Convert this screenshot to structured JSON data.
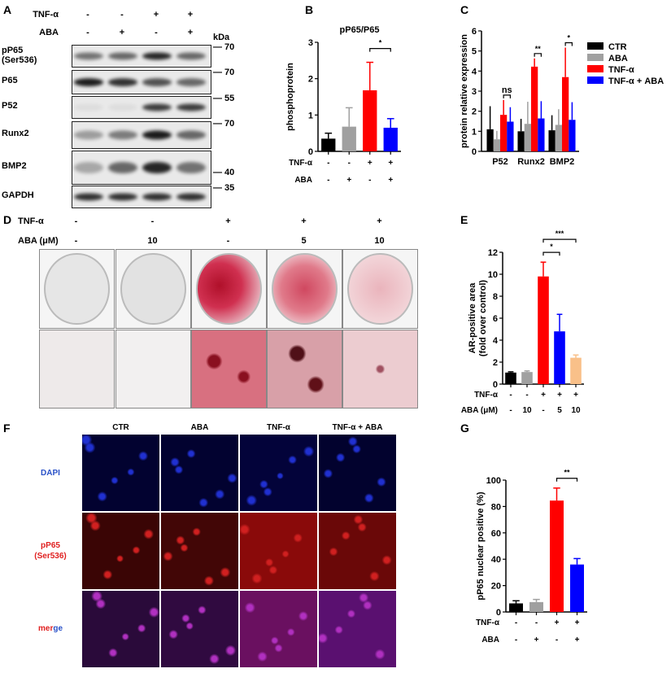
{
  "panels": {
    "A": "A",
    "B": "B",
    "C": "C",
    "D": "D",
    "E": "E",
    "F": "F",
    "G": "G"
  },
  "panel_a": {
    "conditions": [
      {
        "label": "TNF-α",
        "values": [
          "-",
          "-",
          "+",
          "+"
        ]
      },
      {
        "label": "ABA",
        "values": [
          "-",
          "+",
          "-",
          "+"
        ]
      }
    ],
    "kda_label": "kDa",
    "rows": [
      {
        "label": "pP65",
        "sublabel": "(Ser536)",
        "kda": "70"
      },
      {
        "label": "P65",
        "kda": "70"
      },
      {
        "label": "P52",
        "kda": "55"
      },
      {
        "label": "Runx2",
        "kda": "70"
      },
      {
        "label": "BMP2",
        "kda": "40"
      },
      {
        "label": "GAPDH",
        "kda": "35"
      }
    ]
  },
  "panel_d": {
    "conditions": [
      {
        "label": "TNF-α",
        "values": [
          "-",
          "-",
          "+",
          "+",
          "+"
        ]
      },
      {
        "label": "ABA (μM)",
        "values": [
          "-",
          "10",
          "-",
          "5",
          "10"
        ]
      }
    ]
  },
  "panel_f": {
    "columns": [
      "CTR",
      "ABA",
      "TNF-α",
      "TNF-α + ABA"
    ],
    "rows": [
      {
        "label": "DAPI",
        "color": "#2a52c8"
      },
      {
        "label": "pP65",
        "sublabel": "(Ser536)",
        "color": "#e02020"
      },
      {
        "label_part1": "mer",
        "label_part2": "ge",
        "color1": "#e02020",
        "color2": "#2a52c8"
      }
    ]
  },
  "colors": {
    "ctr": "#000000",
    "aba": "#a0a0a0",
    "tnf": "#ff0000",
    "tnf_aba": "#0000ff",
    "aba10": "#f9c089"
  },
  "chart_data": [
    {
      "id": "B",
      "type": "bar",
      "title": "pP65/P65",
      "xlabel": "",
      "ylabel": "phosphoprotein",
      "ylim": [
        0,
        3
      ],
      "yticks": [
        0,
        1,
        2,
        3
      ],
      "values": [
        0.35,
        0.68,
        1.68,
        0.65
      ],
      "error_upper": [
        0.5,
        1.2,
        2.45,
        0.9
      ],
      "colors": [
        "#000000",
        "#a0a0a0",
        "#ff0000",
        "#0000ff"
      ],
      "conditions": [
        {
          "label": "TNF-α",
          "values": [
            "-",
            "-",
            "+",
            "+"
          ]
        },
        {
          "label": "ABA",
          "values": [
            "-",
            "+",
            "-",
            "+"
          ]
        }
      ],
      "significance": [
        {
          "from": 2,
          "to": 3,
          "label": "*"
        }
      ]
    },
    {
      "id": "C",
      "type": "bar",
      "title": "",
      "xlabel": "",
      "ylabel": "protein relative expression",
      "ylim": [
        0,
        6
      ],
      "yticks": [
        0,
        1,
        2,
        3,
        4,
        5,
        6
      ],
      "categories": [
        "P52",
        "Runx2",
        "BMP2"
      ],
      "series": [
        {
          "name": "CTR",
          "color": "#000000",
          "values": [
            1.1,
            1.0,
            1.05
          ],
          "error_upper": [
            2.25,
            1.62,
            1.8
          ]
        },
        {
          "name": "ABA",
          "color": "#a0a0a0",
          "values": [
            0.6,
            1.37,
            1.32
          ],
          "error_upper": [
            1.02,
            2.47,
            2.1
          ]
        },
        {
          "name": "TNF-α",
          "color": "#ff0000",
          "values": [
            1.82,
            4.22,
            3.7
          ],
          "error_upper": [
            2.56,
            4.63,
            5.17
          ]
        },
        {
          "name": "TNF-α + ABA",
          "color": "#0000ff",
          "values": [
            1.48,
            1.64,
            1.57
          ],
          "error_upper": [
            2.2,
            2.5,
            2.45
          ]
        }
      ],
      "legend": "right",
      "significance": [
        {
          "category": 0,
          "label": "ns"
        },
        {
          "category": 1,
          "label": "**"
        },
        {
          "category": 2,
          "label": "*"
        }
      ]
    },
    {
      "id": "E",
      "type": "bar",
      "title": "",
      "xlabel": "",
      "ylabel": "AR-positive area",
      "ylabel2": "(fold over control)",
      "ylim": [
        0,
        12
      ],
      "yticks": [
        0,
        2,
        4,
        6,
        8,
        10,
        12
      ],
      "values": [
        1.05,
        1.1,
        9.8,
        4.8,
        2.4
      ],
      "error_upper": [
        1.12,
        1.2,
        11.1,
        6.35,
        2.65
      ],
      "colors": [
        "#000000",
        "#a0a0a0",
        "#ff0000",
        "#0000ff",
        "#f9c089"
      ],
      "conditions": [
        {
          "label": "TNF-α",
          "values": [
            "-",
            "-",
            "+",
            "+",
            "+"
          ]
        },
        {
          "label": "ABA (μM)",
          "values": [
            "-",
            "10",
            "-",
            "5",
            "10"
          ]
        }
      ],
      "significance": [
        {
          "from": 2,
          "to": 3,
          "label": "*"
        },
        {
          "from": 2,
          "to": 4,
          "label": "***"
        }
      ]
    },
    {
      "id": "G",
      "type": "bar",
      "title": "",
      "xlabel": "",
      "ylabel": "pP65 nuclear positive (%)",
      "ylim": [
        0,
        100
      ],
      "yticks": [
        0,
        20,
        40,
        60,
        80,
        100
      ],
      "values": [
        6.5,
        7.5,
        84.5,
        36
      ],
      "error_upper": [
        8.5,
        9.5,
        94,
        40.5
      ],
      "colors": [
        "#000000",
        "#a0a0a0",
        "#ff0000",
        "#0000ff"
      ],
      "conditions": [
        {
          "label": "TNF-α",
          "values": [
            "-",
            "-",
            "+",
            "+"
          ]
        },
        {
          "label": "ABA",
          "values": [
            "-",
            "+",
            "-",
            "+"
          ]
        }
      ],
      "significance": [
        {
          "from": 2,
          "to": 3,
          "label": "**"
        }
      ]
    }
  ]
}
